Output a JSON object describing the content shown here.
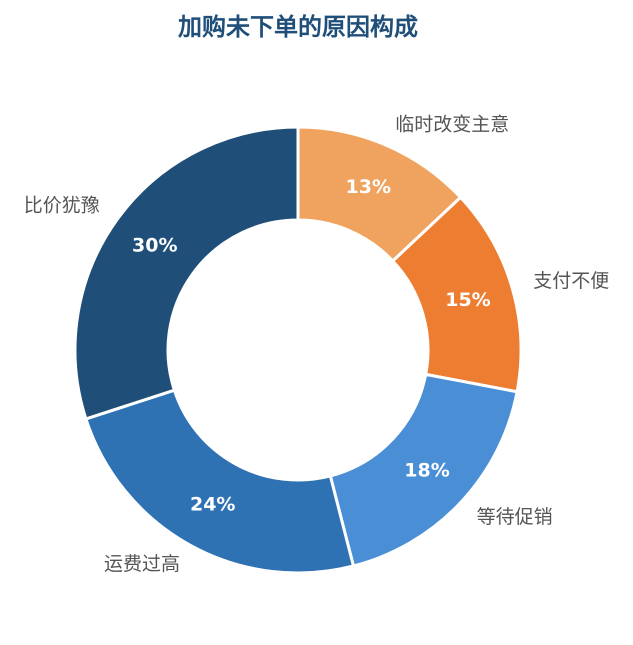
{
  "chart_data": {
    "type": "donut",
    "title": "加购未下单的原因构成",
    "categories": [
      "临时改变主意",
      "支付不便",
      "等待促销",
      "运费过高",
      "比价犹豫"
    ],
    "values": [
      13,
      15,
      18,
      24,
      30
    ],
    "value_labels": [
      "13%",
      "15%",
      "18%",
      "24%",
      "30%"
    ],
    "colors": [
      "#f0a35e",
      "#ed7d31",
      "#4a8fd6",
      "#2e72b4",
      "#1f4e79"
    ]
  }
}
